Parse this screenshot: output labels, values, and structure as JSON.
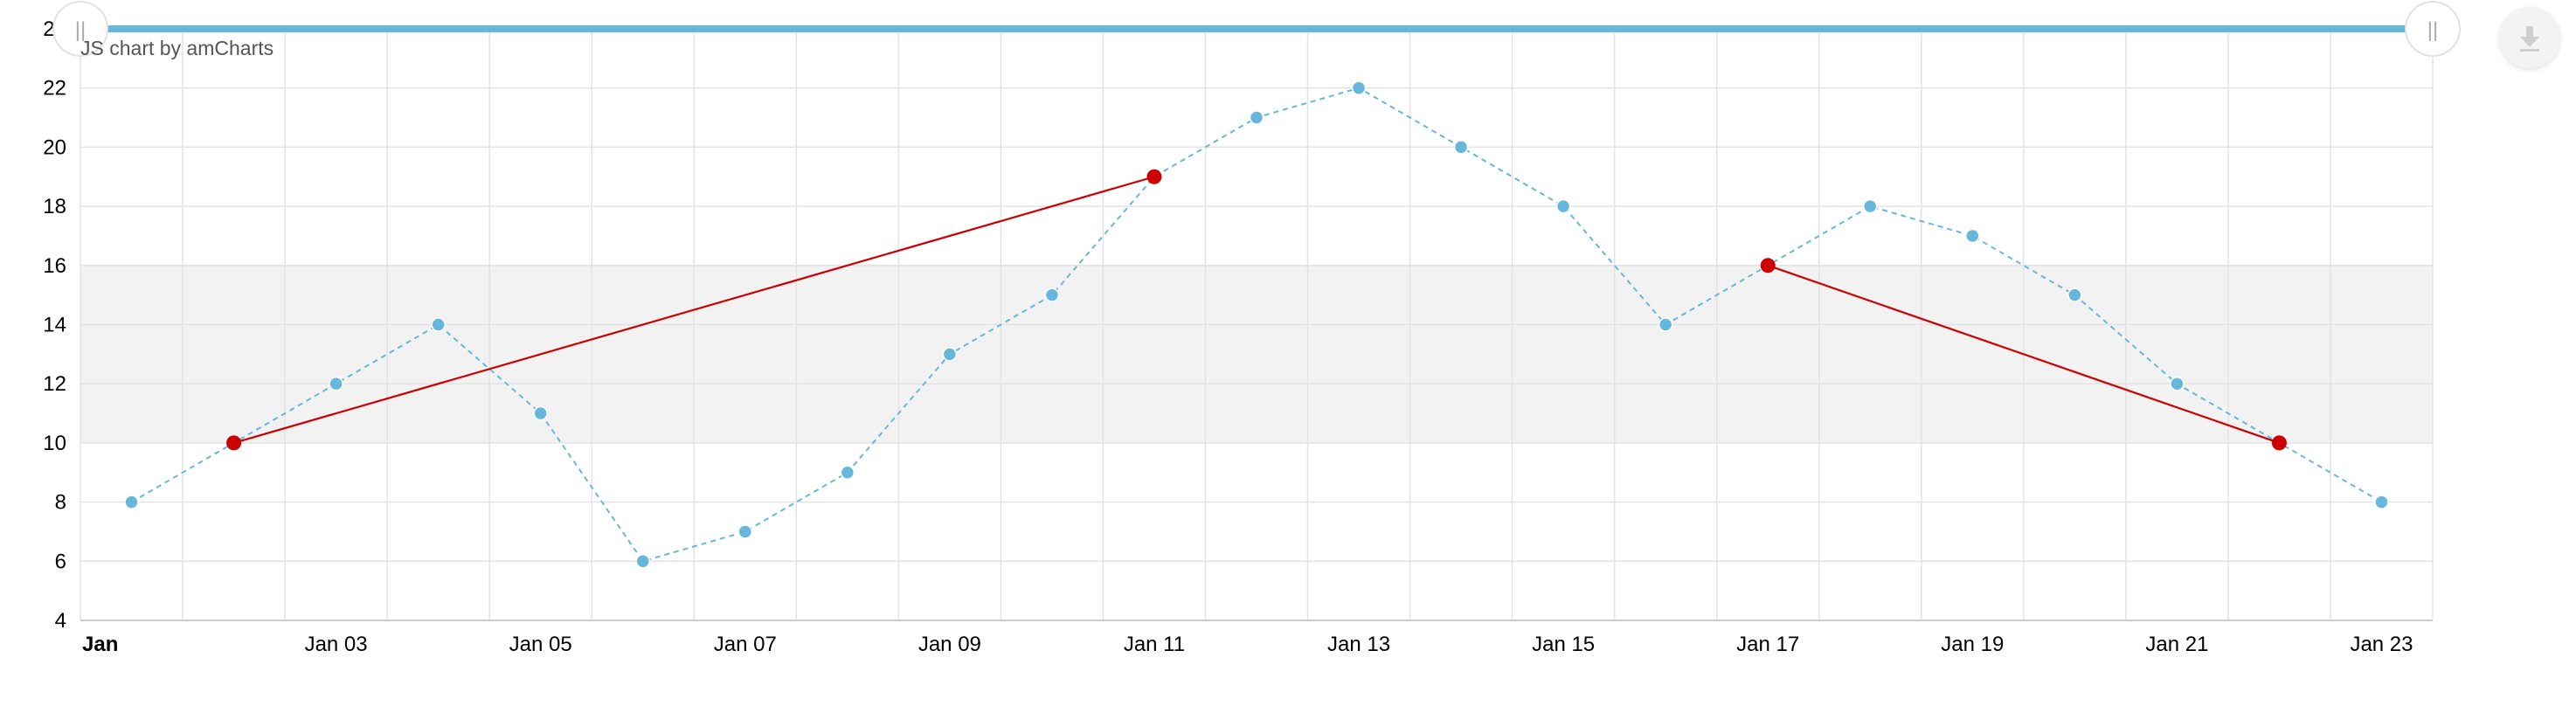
{
  "credit_text": "JS chart by amCharts",
  "scrollbar": {
    "start_grip_label": "||",
    "end_grip_label": "||"
  },
  "download_button": {
    "icon": "download-icon"
  },
  "colors": {
    "series_main": "#67b7dc",
    "series_highlight": "#cc0000",
    "guide_range": "#f2f2f2",
    "grid": "#e3e3e3",
    "scrollbar": "#67b7dc"
  },
  "chart_data": {
    "type": "line",
    "title": "",
    "xlabel": "",
    "ylabel": "",
    "ylim": [
      4,
      24
    ],
    "y_ticks": [
      4,
      6,
      8,
      10,
      12,
      14,
      16,
      18,
      20,
      22,
      24
    ],
    "x_range": [
      "Jan 01",
      "Jan 24"
    ],
    "x_tick_labels": [
      {
        "date": "Jan 01",
        "label": "Jan",
        "bold": true
      },
      {
        "date": "Jan 03",
        "label": "Jan 03"
      },
      {
        "date": "Jan 05",
        "label": "Jan 05"
      },
      {
        "date": "Jan 07",
        "label": "Jan 07"
      },
      {
        "date": "Jan 09",
        "label": "Jan 09"
      },
      {
        "date": "Jan 11",
        "label": "Jan 11"
      },
      {
        "date": "Jan 13",
        "label": "Jan 13"
      },
      {
        "date": "Jan 15",
        "label": "Jan 15"
      },
      {
        "date": "Jan 17",
        "label": "Jan 17"
      },
      {
        "date": "Jan 19",
        "label": "Jan 19"
      },
      {
        "date": "Jan 21",
        "label": "Jan 21"
      },
      {
        "date": "Jan 23",
        "label": "Jan 23"
      }
    ],
    "grid": true,
    "guide_range": [
      10,
      16
    ],
    "series": [
      {
        "line_style": "dashed",
        "color": "#67b7dc",
        "points": [
          {
            "x": "Jan 01",
            "y": 8
          },
          {
            "x": "Jan 02",
            "y": 10
          },
          {
            "x": "Jan 03",
            "y": 12
          },
          {
            "x": "Jan 04",
            "y": 14
          },
          {
            "x": "Jan 05",
            "y": 11
          },
          {
            "x": "Jan 06",
            "y": 6
          },
          {
            "x": "Jan 07",
            "y": 7
          },
          {
            "x": "Jan 08",
            "y": 9
          },
          {
            "x": "Jan 09",
            "y": 13
          },
          {
            "x": "Jan 10",
            "y": 15
          },
          {
            "x": "Jan 11",
            "y": 19
          },
          {
            "x": "Jan 12",
            "y": 21
          },
          {
            "x": "Jan 13",
            "y": 22
          },
          {
            "x": "Jan 14",
            "y": 20
          },
          {
            "x": "Jan 15",
            "y": 18
          },
          {
            "x": "Jan 16",
            "y": 14
          },
          {
            "x": "Jan 17",
            "y": 16
          },
          {
            "x": "Jan 18",
            "y": 18
          },
          {
            "x": "Jan 19",
            "y": 17
          },
          {
            "x": "Jan 20",
            "y": 15
          },
          {
            "x": "Jan 21",
            "y": 12
          },
          {
            "x": "Jan 22",
            "y": 10
          },
          {
            "x": "Jan 23",
            "y": 8
          }
        ]
      },
      {
        "line_style": "solid",
        "color": "#cc0000",
        "points": [
          {
            "x": "Jan 02",
            "y": 10
          },
          {
            "x": "Jan 11",
            "y": 19
          }
        ]
      },
      {
        "line_style": "solid",
        "color": "#cc0000",
        "points": [
          {
            "x": "Jan 17",
            "y": 16
          },
          {
            "x": "Jan 22",
            "y": 10
          }
        ]
      }
    ]
  }
}
